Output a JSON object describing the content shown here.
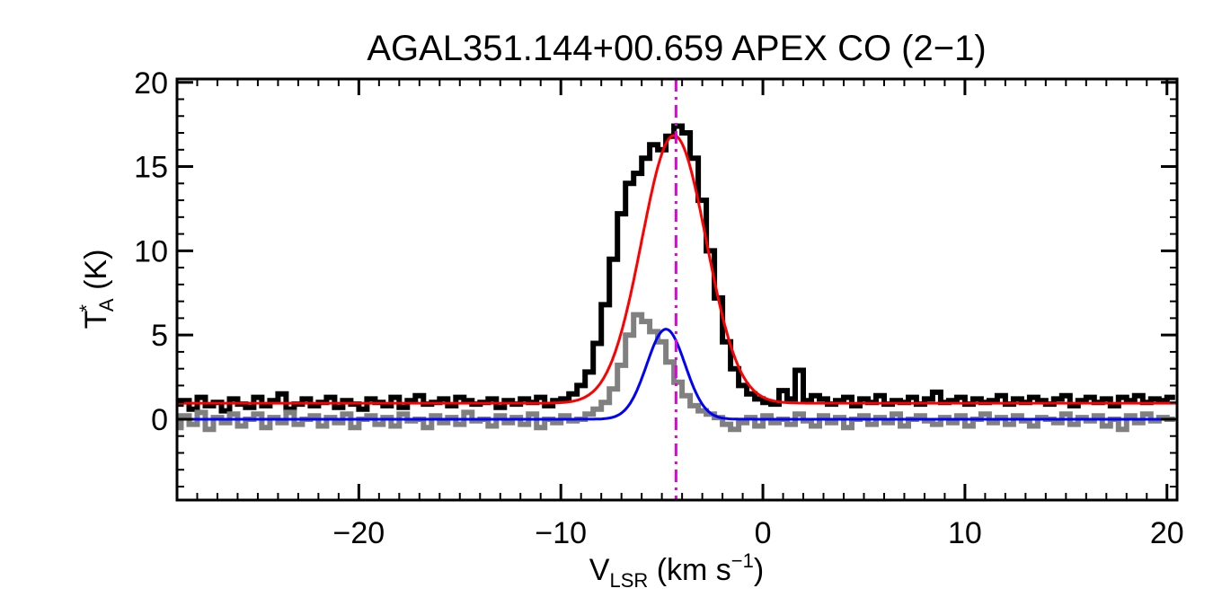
{
  "chart_data": {
    "type": "line",
    "title": "AGAL351.144+00.659  APEX CO (2−1)",
    "xlabel": {
      "main": "V",
      "sub": "LSR",
      "unit_open": " (km s",
      "sup": "−1",
      "unit_close": ")"
    },
    "ylabel": {
      "main": "T",
      "sup": "*",
      "sub": "A",
      "unit": " (K)"
    },
    "xlim": [
      -29,
      20.5
    ],
    "ylim": [
      -4.8,
      20.2
    ],
    "xticks": [
      {
        "value": -20,
        "label": "−20"
      },
      {
        "value": -10,
        "label": "−10"
      },
      {
        "value": 0,
        "label": "0"
      },
      {
        "value": 10,
        "label": "10"
      },
      {
        "value": 20,
        "label": "20"
      }
    ],
    "yticks": [
      {
        "value": 0,
        "label": "0"
      },
      {
        "value": 5,
        "label": "5"
      },
      {
        "value": 10,
        "label": "10"
      },
      {
        "value": 15,
        "label": "15"
      },
      {
        "value": 20,
        "label": "20"
      }
    ],
    "grid": false,
    "vline": {
      "x": -4.3,
      "color": "#e000e0",
      "style": "dash-dot"
    },
    "series": [
      {
        "kind": "step",
        "color": "#000000",
        "x": [
          -29.0,
          -28.6,
          -28.2,
          -27.8,
          -27.4,
          -27.0,
          -26.6,
          -26.2,
          -25.8,
          -25.4,
          -25.0,
          -24.6,
          -24.2,
          -23.8,
          -23.4,
          -23.0,
          -22.6,
          -22.2,
          -21.8,
          -21.4,
          -21.0,
          -20.6,
          -20.2,
          -19.8,
          -19.4,
          -19.0,
          -18.6,
          -18.2,
          -17.8,
          -17.4,
          -17.0,
          -16.6,
          -16.2,
          -15.8,
          -15.4,
          -15.0,
          -14.6,
          -14.2,
          -13.8,
          -13.4,
          -13.0,
          -12.6,
          -12.2,
          -11.8,
          -11.4,
          -11.0,
          -10.6,
          -10.2,
          -9.8,
          -9.4,
          -9.0,
          -8.6,
          -8.2,
          -7.8,
          -7.4,
          -7.0,
          -6.6,
          -6.2,
          -5.8,
          -5.4,
          -5.0,
          -4.6,
          -4.2,
          -3.8,
          -3.4,
          -3.0,
          -2.6,
          -2.2,
          -1.8,
          -1.4,
          -1.0,
          -0.6,
          -0.2,
          0.2,
          0.6,
          1.0,
          1.4,
          1.8,
          2.2,
          2.6,
          3.0,
          3.4,
          3.8,
          4.2,
          4.6,
          5.0,
          5.4,
          5.8,
          6.2,
          6.6,
          7.0,
          7.4,
          7.8,
          8.2,
          8.6,
          9.0,
          9.4,
          9.8,
          10.2,
          10.6,
          11.0,
          11.4,
          11.8,
          12.2,
          12.6,
          13.0,
          13.4,
          13.8,
          14.2,
          14.6,
          15.0,
          15.4,
          15.8,
          16.2,
          16.6,
          17.0,
          17.4,
          17.8,
          18.2,
          18.6,
          19.0,
          19.4,
          19.8,
          20.2
        ],
        "y": [
          0.9,
          1.1,
          0.6,
          1.3,
          0.8,
          1.0,
          0.5,
          1.2,
          0.9,
          0.7,
          1.3,
          0.8,
          1.1,
          1.5,
          0.6,
          0.9,
          1.2,
          0.8,
          1.0,
          1.3,
          0.7,
          1.1,
          0.9,
          0.6,
          1.2,
          1.0,
          0.8,
          1.3,
          0.7,
          1.1,
          1.4,
          0.9,
          1.0,
          1.2,
          0.8,
          1.3,
          1.1,
          0.9,
          1.0,
          1.2,
          0.7,
          1.1,
          0.9,
          1.2,
          1.0,
          1.3,
          0.8,
          1.1,
          1.2,
          1.5,
          2.0,
          2.8,
          4.5,
          6.8,
          9.5,
          12.2,
          14.0,
          14.6,
          15.5,
          16.3,
          16.0,
          16.8,
          17.4,
          17.0,
          15.5,
          13.0,
          10.0,
          7.2,
          4.6,
          3.0,
          2.0,
          1.5,
          1.2,
          1.0,
          0.9,
          1.7,
          1.2,
          2.9,
          1.1,
          1.4,
          1.2,
          0.9,
          1.1,
          1.3,
          0.8,
          1.2,
          1.0,
          1.4,
          0.9,
          1.1,
          1.0,
          1.3,
          0.9,
          1.2,
          1.6,
          1.0,
          1.1,
          1.3,
          0.9,
          1.2,
          1.0,
          1.1,
          1.4,
          0.9,
          1.2,
          1.0,
          1.3,
          1.1,
          0.9,
          1.2,
          1.4,
          0.8,
          1.1,
          1.3,
          1.0,
          1.2,
          0.8,
          1.3,
          1.1,
          1.4,
          1.0,
          1.2,
          1.1,
          1.3
        ]
      },
      {
        "kind": "step",
        "color": "#808080",
        "x": [
          -29.0,
          -28.6,
          -28.2,
          -27.8,
          -27.4,
          -27.0,
          -26.6,
          -26.2,
          -25.8,
          -25.4,
          -25.0,
          -24.6,
          -24.2,
          -23.8,
          -23.4,
          -23.0,
          -22.6,
          -22.2,
          -21.8,
          -21.4,
          -21.0,
          -20.6,
          -20.2,
          -19.8,
          -19.4,
          -19.0,
          -18.6,
          -18.2,
          -17.8,
          -17.4,
          -17.0,
          -16.6,
          -16.2,
          -15.8,
          -15.4,
          -15.0,
          -14.6,
          -14.2,
          -13.8,
          -13.4,
          -13.0,
          -12.6,
          -12.2,
          -11.8,
          -11.4,
          -11.0,
          -10.6,
          -10.2,
          -9.8,
          -9.4,
          -9.0,
          -8.6,
          -8.2,
          -7.8,
          -7.4,
          -7.0,
          -6.6,
          -6.2,
          -5.8,
          -5.4,
          -5.0,
          -4.6,
          -4.2,
          -3.8,
          -3.4,
          -3.0,
          -2.6,
          -2.2,
          -1.8,
          -1.4,
          -1.0,
          -0.6,
          -0.2,
          0.2,
          0.6,
          1.0,
          1.4,
          1.8,
          2.2,
          2.6,
          3.0,
          3.4,
          3.8,
          4.2,
          4.6,
          5.0,
          5.4,
          5.8,
          6.2,
          6.6,
          7.0,
          7.4,
          7.8,
          8.2,
          8.6,
          9.0,
          9.4,
          9.8,
          10.2,
          10.6,
          11.0,
          11.4,
          11.8,
          12.2,
          12.6,
          13.0,
          13.4,
          13.8,
          14.2,
          14.6,
          15.0,
          15.4,
          15.8,
          16.2,
          16.6,
          17.0,
          17.4,
          17.8,
          18.2,
          18.6,
          19.0,
          19.4,
          19.8,
          20.2
        ],
        "y": [
          -0.5,
          0.2,
          -0.3,
          0.4,
          -0.6,
          0.1,
          -0.2,
          0.3,
          -0.4,
          0.0,
          0.3,
          -0.5,
          0.1,
          -0.2,
          0.4,
          -0.3,
          0.0,
          0.2,
          -0.4,
          0.1,
          -0.2,
          0.3,
          -0.5,
          0.0,
          0.2,
          -0.3,
          0.1,
          -0.4,
          0.3,
          -0.1,
          0.0,
          -0.5,
          0.2,
          -0.2,
          0.1,
          -0.3,
          0.4,
          -0.1,
          0.0,
          -0.4,
          0.2,
          -0.2,
          0.1,
          -0.3,
          0.3,
          -0.5,
          0.0,
          -0.2,
          0.2,
          -0.1,
          0.0,
          0.3,
          0.6,
          1.0,
          1.8,
          3.2,
          5.0,
          6.2,
          5.8,
          5.2,
          4.6,
          3.4,
          2.2,
          1.4,
          0.8,
          0.5,
          0.3,
          0.1,
          -0.3,
          -0.6,
          -0.2,
          0.1,
          -0.4,
          0.2,
          -0.2,
          0.0,
          -0.3,
          0.3,
          -0.1,
          -0.4,
          0.2,
          -0.2,
          0.1,
          -0.5,
          0.0,
          0.2,
          -0.3,
          0.1,
          -0.2,
          0.3,
          -0.4,
          0.0,
          0.2,
          -0.1,
          -0.3,
          0.1,
          -0.2,
          0.2,
          -0.4,
          0.0,
          0.3,
          -0.2,
          0.1,
          -0.3,
          0.2,
          -0.1,
          -0.4,
          0.1,
          0.0,
          -0.2,
          0.3,
          -0.3,
          0.1,
          -0.1,
          0.2,
          -0.4,
          0.0,
          -0.6,
          0.2,
          -0.2,
          0.3,
          -0.1,
          0.1,
          0.0
        ]
      },
      {
        "kind": "gaussian",
        "color": "#ff0000",
        "amplitude": 15.9,
        "center": -4.4,
        "sigma": 1.6,
        "baseline": 0.95
      },
      {
        "kind": "gaussian",
        "color": "#0000ff",
        "amplitude": 5.35,
        "center": -4.8,
        "sigma": 0.95,
        "baseline": 0.0
      }
    ]
  }
}
